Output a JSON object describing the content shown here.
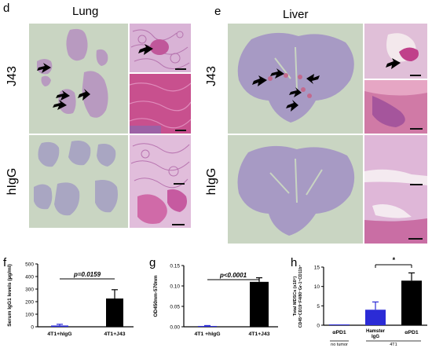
{
  "panels": {
    "d": {
      "letter": "d",
      "title": "Lung",
      "row_top": "J43",
      "row_bottom": "hIgG"
    },
    "e": {
      "letter": "e",
      "title": "Liver",
      "row_top": "J43",
      "row_bottom": "hIgG"
    },
    "f": {
      "letter": "f"
    },
    "g": {
      "letter": "g"
    },
    "h": {
      "letter": "h"
    }
  },
  "colors": {
    "blue": "#2b2bd6",
    "black": "#000000",
    "tissue": "#b89ac0",
    "slide_bg": "#c9d5c2"
  },
  "icons": [
    "arrow-icon"
  ],
  "chart_data": [
    {
      "id": "f",
      "type": "bar",
      "ylabel": "Serum IgG1 levels (µg/ml)",
      "yticks": [
        0,
        100,
        200,
        300,
        400,
        500
      ],
      "ylim": [
        0,
        500
      ],
      "categories": [
        "4T1+hIgG",
        "4T1+J43"
      ],
      "values": [
        10,
        225
      ],
      "errors": [
        10,
        70
      ],
      "bar_colors": [
        "#2b2bd6",
        "#000000"
      ],
      "annotation": "p=0.0159"
    },
    {
      "id": "g",
      "type": "bar",
      "ylabel": "OD450nm-570nm",
      "yticks": [
        0.0,
        0.05,
        0.1,
        0.15
      ],
      "ylim": [
        0,
        0.15
      ],
      "categories": [
        "4T1 +hIgG",
        "4T1+J43"
      ],
      "values": [
        0.002,
        0.11
      ],
      "errors": [
        0.001,
        0.01
      ],
      "bar_colors": [
        "#2b2bd6",
        "#000000"
      ],
      "annotation": "p<0.0001"
    },
    {
      "id": "h",
      "type": "bar",
      "ylabel_line1": "Total MDSCs (x10⁵)",
      "ylabel_line2": "CD45⁺CD19⁻F4/80⁻Gr-1⁺CD11b⁺",
      "yticks": [
        0,
        5,
        10,
        15
      ],
      "ylim": [
        0,
        15
      ],
      "categories": [
        "αPD1",
        "Hamster IgG",
        "αPD1"
      ],
      "group_labels": [
        "no tumor",
        "4T1"
      ],
      "values": [
        0,
        4,
        11.5
      ],
      "errors": [
        0,
        2,
        2
      ],
      "bar_colors": [
        "#2b2bd6",
        "#2b2bd6",
        "#000000"
      ],
      "annotation": "*"
    }
  ]
}
